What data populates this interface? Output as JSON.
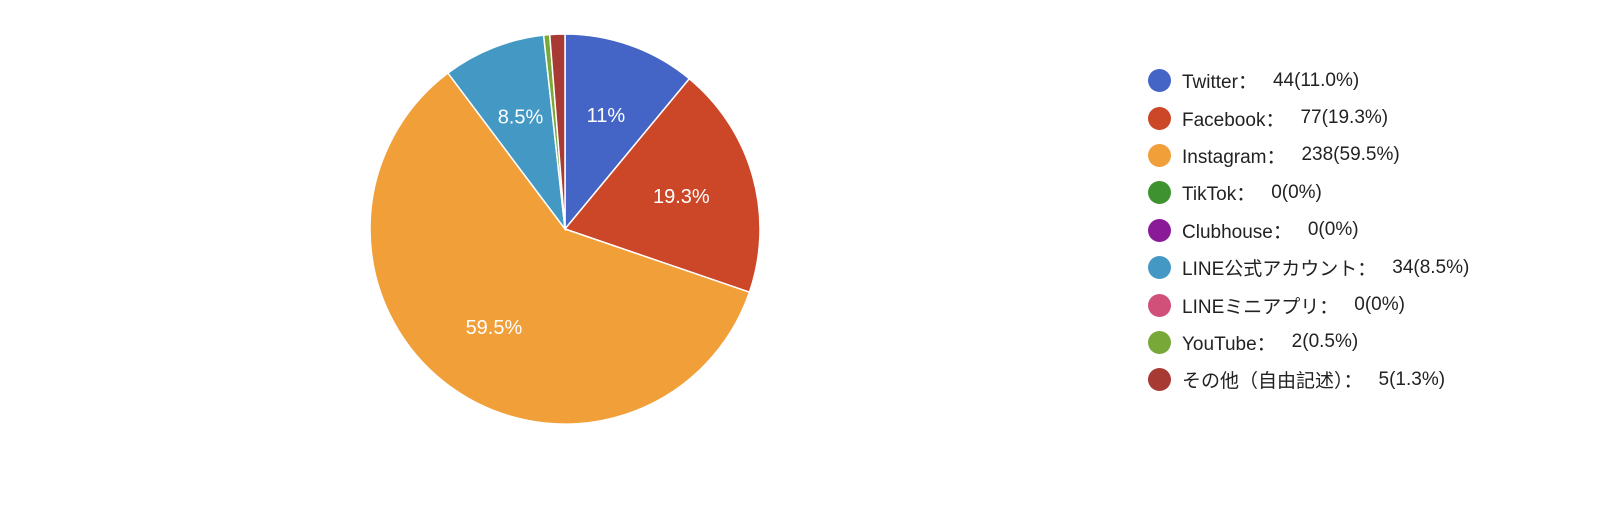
{
  "chart_data": {
    "type": "pie",
    "categories": [
      "Twitter",
      "Facebook",
      "Instagram",
      "TikTok",
      "Clubhouse",
      "LINE公式アカウント",
      "LINEミニアプリ",
      "YouTube",
      "その他（自由記述）"
    ],
    "values": [
      44,
      77,
      238,
      0,
      0,
      34,
      0,
      2,
      5
    ],
    "slice_labels": [
      "11%",
      "19.3%",
      "59.5%",
      "",
      "",
      "8.5%",
      "",
      "",
      ""
    ],
    "legend_values": [
      "44(11.0%)",
      "77(19.3%)",
      "238(59.5%)",
      "0(0%)",
      "0(0%)",
      "34(8.5%)",
      "0(0%)",
      "2(0.5%)",
      "5(1.3%)"
    ],
    "separator": "：",
    "colors": [
      "#4465c6",
      "#cc4628",
      "#f19f38",
      "#3f9230",
      "#8b1a98",
      "#4499c4",
      "#d1507a",
      "#77a838",
      "#a83a34"
    ],
    "legend_position": "right"
  }
}
